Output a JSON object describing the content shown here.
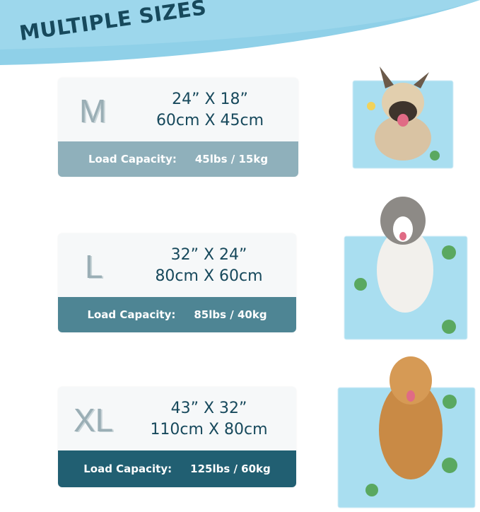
{
  "title": "MULTIPLE SIZES",
  "colors": {
    "banner": "#8fd0e8",
    "title": "#17495c",
    "bar_m": "#8fb0bb",
    "bar_l": "#4e8594",
    "bar_xl": "#215f72",
    "mat": "#a9def0"
  },
  "sizes": [
    {
      "label": "M",
      "inches": "24” X 18”",
      "cm": "60cm X 45cm",
      "load_label": "Load Capacity:",
      "load_value": "45lbs / 15kg"
    },
    {
      "label": "L",
      "inches": "32” X 24”",
      "cm": "80cm X 60cm",
      "load_label": "Load Capacity:",
      "load_value": "85lbs / 40kg"
    },
    {
      "label": "XL",
      "inches": "43” X 32”",
      "cm": "110cm X 80cm",
      "load_label": "Load Capacity:",
      "load_value": "125lbs / 60kg"
    }
  ]
}
